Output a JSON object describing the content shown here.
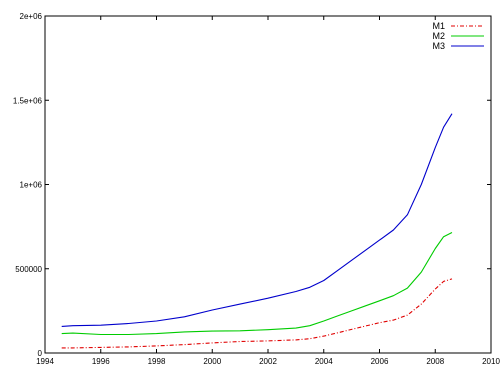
{
  "chart_data": {
    "type": "line",
    "title": "",
    "xlabel": "",
    "ylabel": "",
    "xlim": [
      1994,
      2010
    ],
    "ylim": [
      0,
      2000000
    ],
    "x_ticks": [
      1994,
      1996,
      1998,
      2000,
      2002,
      2004,
      2006,
      2008,
      2010
    ],
    "x_tick_labels": [
      "1994",
      "1996",
      "1998",
      "2000",
      "2002",
      "2004",
      "2006",
      "2008",
      "2010"
    ],
    "y_ticks": [
      0,
      500000,
      1000000,
      1500000,
      2000000
    ],
    "y_tick_labels": [
      "0",
      "500000",
      "1e+06",
      "1.5e+06",
      "2e+06"
    ],
    "grid": false,
    "legend_position": "top-right",
    "series": [
      {
        "name": "M1",
        "color": "#e00000",
        "style": "dash-dot",
        "x": [
          1994.6,
          1995.0,
          1996.0,
          1997.0,
          1998.0,
          1999.0,
          2000.0,
          2001.0,
          2002.0,
          2003.0,
          2003.5,
          2004.0,
          2004.5,
          2005.0,
          2005.5,
          2006.0,
          2006.5,
          2007.0,
          2007.5,
          2008.0,
          2008.3,
          2008.6
        ],
        "y": [
          30000,
          30000,
          33000,
          36000,
          42000,
          50000,
          60000,
          68000,
          72000,
          78000,
          85000,
          100000,
          120000,
          140000,
          160000,
          180000,
          195000,
          225000,
          290000,
          380000,
          425000,
          440000
        ]
      },
      {
        "name": "M2",
        "color": "#00cc00",
        "style": "solid",
        "x": [
          1994.6,
          1995.0,
          1996.0,
          1997.0,
          1998.0,
          1999.0,
          2000.0,
          2001.0,
          2002.0,
          2003.0,
          2003.5,
          2004.0,
          2004.5,
          2005.0,
          2005.5,
          2006.0,
          2006.5,
          2007.0,
          2007.5,
          2008.0,
          2008.3,
          2008.6
        ],
        "y": [
          115000,
          118000,
          110000,
          110000,
          115000,
          125000,
          130000,
          132000,
          138000,
          148000,
          162000,
          190000,
          220000,
          250000,
          280000,
          310000,
          340000,
          385000,
          480000,
          620000,
          690000,
          715000
        ]
      },
      {
        "name": "M3",
        "color": "#0000cc",
        "style": "solid",
        "x": [
          1994.6,
          1995.0,
          1996.0,
          1997.0,
          1998.0,
          1999.0,
          2000.0,
          2001.0,
          2002.0,
          2003.0,
          2003.5,
          2004.0,
          2004.5,
          2005.0,
          2005.5,
          2006.0,
          2006.5,
          2007.0,
          2007.5,
          2008.0,
          2008.3,
          2008.6
        ],
        "y": [
          158000,
          162000,
          165000,
          175000,
          190000,
          215000,
          255000,
          290000,
          325000,
          365000,
          390000,
          430000,
          490000,
          550000,
          610000,
          670000,
          730000,
          820000,
          1000000,
          1220000,
          1340000,
          1420000
        ]
      }
    ]
  }
}
